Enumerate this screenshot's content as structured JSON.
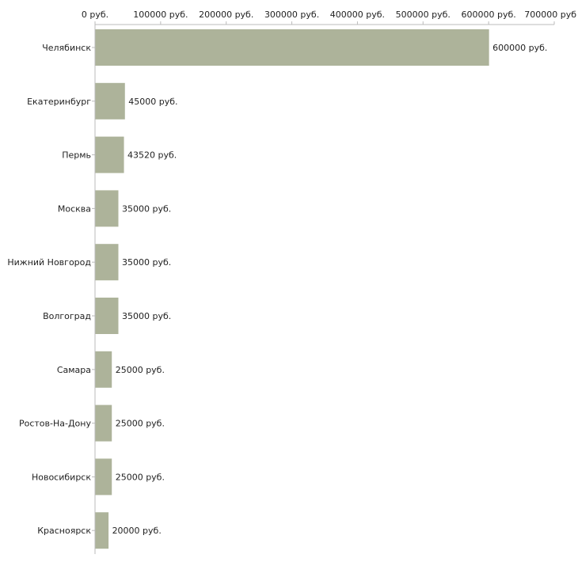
{
  "chart_data": {
    "type": "bar",
    "orientation": "horizontal",
    "title": "",
    "xlabel": "",
    "ylabel": "",
    "currency_suffix": " руб.",
    "xlim": [
      0,
      700000
    ],
    "x_ticks": [
      0,
      100000,
      200000,
      300000,
      400000,
      500000,
      600000,
      700000
    ],
    "x_tick_labels": [
      "0 руб.",
      "100000 руб.",
      "200000 руб.",
      "300000 руб.",
      "400000 руб.",
      "500000 руб.",
      "600000 руб.",
      "700000 руб"
    ],
    "axis_position": "top",
    "grid": false,
    "legend": "none",
    "categories": [
      "Челябинск",
      "Екатеринбург",
      "Пермь",
      "Москва",
      "Нижний Новгород",
      "Волгоград",
      "Самара",
      "Ростов-На-Дону",
      "Новосибирск",
      "Красноярск"
    ],
    "values": [
      600000,
      45000,
      43520,
      35000,
      35000,
      35000,
      25000,
      25000,
      25000,
      20000
    ],
    "data_labels": [
      "600000 руб.",
      "45000 руб.",
      "43520 руб.",
      "35000 руб.",
      "35000 руб.",
      "35000 руб.",
      "25000 руб.",
      "25000 руб.",
      "25000 руб.",
      "20000 руб."
    ],
    "colors": {
      "bar": "#adb39a",
      "axis": "#bbbbbb",
      "text": "#222222"
    }
  }
}
